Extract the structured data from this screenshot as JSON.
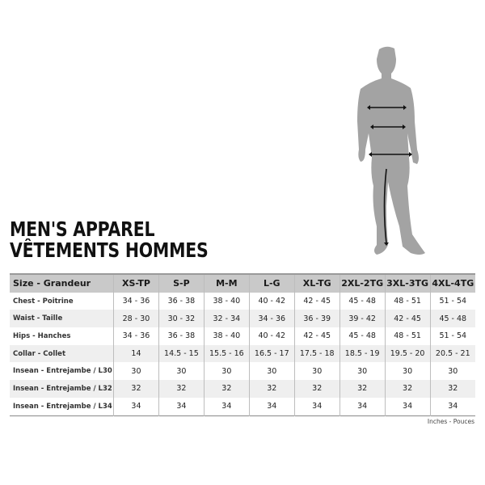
{
  "title": {
    "line1": "MEN'S APPAREL",
    "line2": "VÊTEMENTS HOMMES"
  },
  "figure": {
    "icon": "male-silhouette-measurement-icon",
    "color": "#a3a3a3"
  },
  "table": {
    "headers": [
      "Size - Grandeur",
      "XS-TP",
      "S-P",
      "M-M",
      "L-G",
      "XL-TG",
      "2XL-2TG",
      "3XL-3TG",
      "4XL-4TG"
    ],
    "rows": [
      {
        "label": "Chest - Poitrine",
        "values": [
          "34 - 36",
          "36 - 38",
          "38 - 40",
          "40 - 42",
          "42 - 45",
          "45 - 48",
          "48 - 51",
          "51 - 54"
        ]
      },
      {
        "label": "Waist - Taille",
        "values": [
          "28 - 30",
          "30 - 32",
          "32 - 34",
          "34 - 36",
          "36 - 39",
          "39 - 42",
          "42 - 45",
          "45 - 48"
        ]
      },
      {
        "label": "Hips - Hanches",
        "values": [
          "34 - 36",
          "36 - 38",
          "38 - 40",
          "40 - 42",
          "42 - 45",
          "45 - 48",
          "48 - 51",
          "51 - 54"
        ]
      },
      {
        "label": "Collar - Collet",
        "values": [
          "14",
          "14.5 - 15",
          "15.5 - 16",
          "16.5 - 17",
          "17.5 - 18",
          "18.5 - 19",
          "19.5 - 20",
          "20.5 - 21"
        ]
      },
      {
        "label": "Insean - Entrejambe / L30",
        "values": [
          "30",
          "30",
          "30",
          "30",
          "30",
          "30",
          "30",
          "30"
        ]
      },
      {
        "label": "Insean - Entrejambe / L32",
        "values": [
          "32",
          "32",
          "32",
          "32",
          "32",
          "32",
          "32",
          "32"
        ]
      },
      {
        "label": "Insean - Entrejambe / L34",
        "values": [
          "34",
          "34",
          "34",
          "34",
          "34",
          "34",
          "34",
          "34"
        ]
      }
    ]
  },
  "units": "Inches - Pouces"
}
